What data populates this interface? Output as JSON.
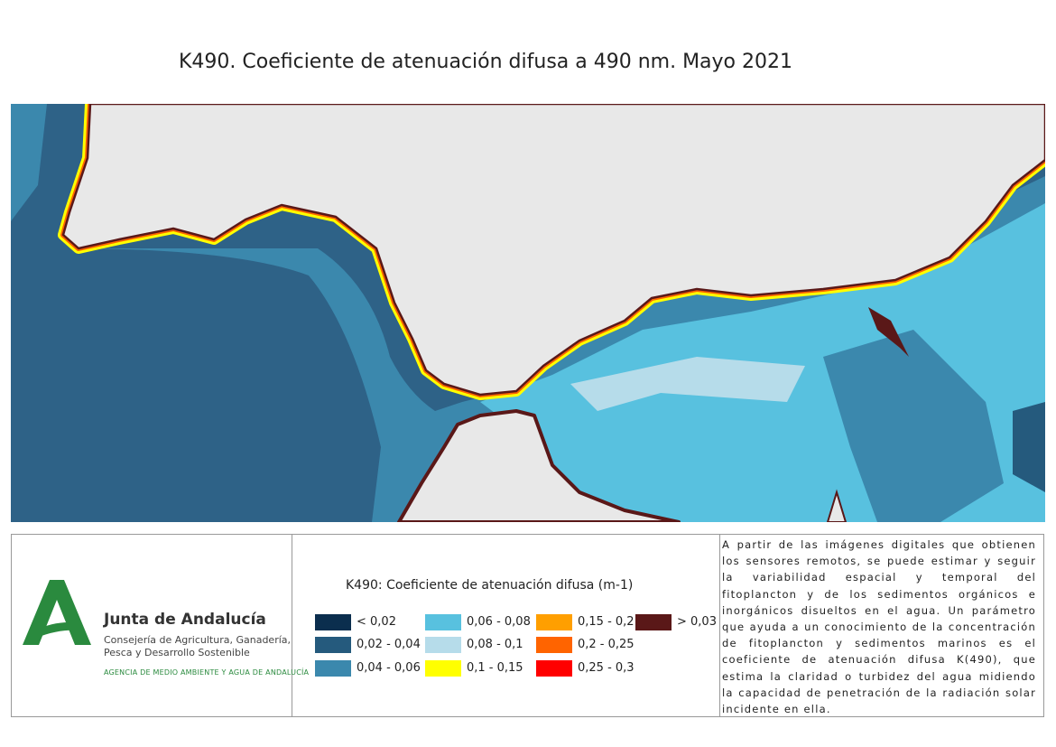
{
  "title": "K490. Coeficiente de atenuación difusa a 490 nm. Mayo 2021",
  "logo": {
    "name": "Junta de Andalucía",
    "department": [
      "Consejería de Agricultura, Ganadería,",
      "Pesca y Desarrollo Sostenible"
    ],
    "agency": "AGENCIA DE MEDIO AMBIENTE Y AGUA DE ANDALUCÍA"
  },
  "legend": {
    "title": "K490: Coeficiente de atenuación difusa (m-1)",
    "items": [
      {
        "label": "< 0,02",
        "color": "#0b2e4e"
      },
      {
        "label": "0,02 - 0,04",
        "color": "#255a7d"
      },
      {
        "label": "0,04 - 0,06",
        "color": "#3b88ad"
      },
      {
        "label": "0,06 - 0,08",
        "color": "#58c1df"
      },
      {
        "label": "0,08 - 0,1",
        "color": "#b6dcea"
      },
      {
        "label": "0,1 - 0,15",
        "color": "#ffff00"
      },
      {
        "label": "0,15 - 0,2",
        "color": "#ff9f00"
      },
      {
        "label": "0,2 - 0,25",
        "color": "#ff6400"
      },
      {
        "label": "0,25 - 0,3",
        "color": "#ff0000"
      },
      {
        "label": "> 0,03",
        "color": "#5a1818"
      }
    ]
  },
  "description": "A partir de las imágenes digitales que obtienen los sensores remotos, se puede estimar y seguir la variabilidad espacial y temporal del fitoplancton y de los sedimentos orgánicos e inorgánicos disueltos en el agua. Un parámetro que ayuda a un conocimiento de la concentración de fitoplancton y sedimentos marinos es el coeficiente de atenuación difusa K(490), que estima la claridad o turbidez del agua midiendo la capacidad de penetración de la radiación solar incidente en ella."
}
